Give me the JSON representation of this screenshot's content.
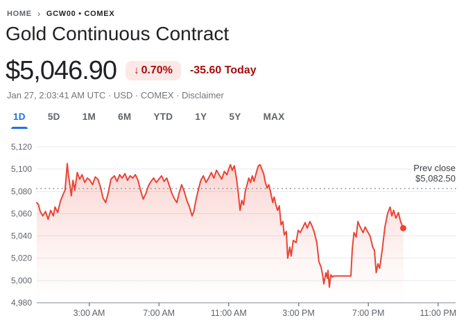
{
  "breadcrumb": {
    "home": "HOME",
    "current": "GCW00 • COMEX"
  },
  "header": {
    "title": "Gold Continuous Contract"
  },
  "quote": {
    "price": "$5,046.90",
    "change_arrow": "↓",
    "change_percent": "0.70%",
    "change_amount": "-35.60 Today",
    "meta_prefix": "Jan 27, 2:03:41 AM UTC · USD · COMEX ·",
    "disclaimer_label": "Disclaimer"
  },
  "range_tabs": [
    {
      "label": "1D",
      "active": true
    },
    {
      "label": "5D",
      "active": false
    },
    {
      "label": "1M",
      "active": false
    },
    {
      "label": "6M",
      "active": false
    },
    {
      "label": "YTD",
      "active": false
    },
    {
      "label": "1Y",
      "active": false
    },
    {
      "label": "5Y",
      "active": false
    },
    {
      "label": "MAX",
      "active": false
    }
  ],
  "colors": {
    "accent_blue": "#1a73e8",
    "negative_red": "#a50e0e",
    "badge_bg": "#fce8e6",
    "line_red": "#ea4335",
    "gridline": "#e8eaed",
    "axis": "#80868b",
    "dotted_line": "#9aa0a6"
  },
  "chart_data": {
    "type": "line",
    "title": "",
    "xlabel": "",
    "ylabel": "",
    "x_domain": [
      0,
      24
    ],
    "y_domain": [
      4980,
      5120
    ],
    "grid": true,
    "legend": false,
    "x_ticks": [
      {
        "h": 3,
        "label": "3:00 AM"
      },
      {
        "h": 7,
        "label": "7:00 AM"
      },
      {
        "h": 11,
        "label": "11:00 AM"
      },
      {
        "h": 15,
        "label": "3:00 PM"
      },
      {
        "h": 19,
        "label": "7:00 PM"
      },
      {
        "h": 23,
        "label": "11:00 PM"
      }
    ],
    "y_ticks": [
      {
        "v": 4980,
        "label": "4,980"
      },
      {
        "v": 5000,
        "label": "5,000"
      },
      {
        "v": 5020,
        "label": "5,020"
      },
      {
        "v": 5040,
        "label": "5,040"
      },
      {
        "v": 5060,
        "label": "5,060"
      },
      {
        "v": 5080,
        "label": "5,080"
      },
      {
        "v": 5100,
        "label": "5,100"
      },
      {
        "v": 5120,
        "label": "5,120"
      }
    ],
    "prev_close": {
      "label": "Prev close",
      "value_label": "$5,082.50",
      "value": 5082.5
    },
    "last_price": 5046.9,
    "points": [
      [
        0.0,
        5070
      ],
      [
        0.1,
        5068
      ],
      [
        0.2,
        5062
      ],
      [
        0.35,
        5058
      ],
      [
        0.5,
        5062
      ],
      [
        0.65,
        5055
      ],
      [
        0.8,
        5063
      ],
      [
        0.95,
        5058
      ],
      [
        1.05,
        5066
      ],
      [
        1.2,
        5061
      ],
      [
        1.35,
        5071
      ],
      [
        1.5,
        5077
      ],
      [
        1.62,
        5081
      ],
      [
        1.75,
        5105
      ],
      [
        1.82,
        5094
      ],
      [
        1.9,
        5086
      ],
      [
        1.98,
        5076
      ],
      [
        2.08,
        5090
      ],
      [
        2.18,
        5081
      ],
      [
        2.32,
        5097
      ],
      [
        2.46,
        5091
      ],
      [
        2.6,
        5095
      ],
      [
        2.75,
        5088
      ],
      [
        2.9,
        5092
      ],
      [
        3.05,
        5090
      ],
      [
        3.2,
        5086
      ],
      [
        3.35,
        5093
      ],
      [
        3.5,
        5091
      ],
      [
        3.65,
        5084
      ],
      [
        3.8,
        5074
      ],
      [
        3.95,
        5070
      ],
      [
        4.1,
        5079
      ],
      [
        4.25,
        5091
      ],
      [
        4.45,
        5094
      ],
      [
        4.6,
        5089
      ],
      [
        4.75,
        5095
      ],
      [
        4.9,
        5092
      ],
      [
        5.05,
        5096
      ],
      [
        5.2,
        5090
      ],
      [
        5.35,
        5094
      ],
      [
        5.5,
        5092
      ],
      [
        5.65,
        5095
      ],
      [
        5.8,
        5090
      ],
      [
        5.95,
        5081
      ],
      [
        6.1,
        5073
      ],
      [
        6.25,
        5078
      ],
      [
        6.4,
        5085
      ],
      [
        6.55,
        5089
      ],
      [
        6.7,
        5092
      ],
      [
        6.85,
        5088
      ],
      [
        7.0,
        5091
      ],
      [
        7.15,
        5094
      ],
      [
        7.3,
        5089
      ],
      [
        7.45,
        5092
      ],
      [
        7.6,
        5085
      ],
      [
        7.75,
        5078
      ],
      [
        7.9,
        5073
      ],
      [
        8.03,
        5070
      ],
      [
        8.15,
        5078
      ],
      [
        8.3,
        5086
      ],
      [
        8.45,
        5080
      ],
      [
        8.6,
        5072
      ],
      [
        8.75,
        5066
      ],
      [
        8.9,
        5058
      ],
      [
        9.0,
        5062
      ],
      [
        9.12,
        5072
      ],
      [
        9.25,
        5081
      ],
      [
        9.4,
        5090
      ],
      [
        9.55,
        5094
      ],
      [
        9.7,
        5088
      ],
      [
        9.85,
        5092
      ],
      [
        10.0,
        5097
      ],
      [
        10.15,
        5092
      ],
      [
        10.3,
        5099
      ],
      [
        10.45,
        5095
      ],
      [
        10.6,
        5091
      ],
      [
        10.75,
        5098
      ],
      [
        10.9,
        5095
      ],
      [
        11.0,
        5100
      ],
      [
        11.1,
        5104
      ],
      [
        11.2,
        5099
      ],
      [
        11.32,
        5103
      ],
      [
        11.45,
        5091
      ],
      [
        11.55,
        5078
      ],
      [
        11.65,
        5063
      ],
      [
        11.75,
        5072
      ],
      [
        11.85,
        5068
      ],
      [
        11.95,
        5080
      ],
      [
        12.05,
        5086
      ],
      [
        12.15,
        5092
      ],
      [
        12.25,
        5088
      ],
      [
        12.35,
        5094
      ],
      [
        12.45,
        5089
      ],
      [
        12.6,
        5098
      ],
      [
        12.7,
        5103
      ],
      [
        12.8,
        5104
      ],
      [
        12.9,
        5100
      ],
      [
        13.0,
        5096
      ],
      [
        13.1,
        5088
      ],
      [
        13.2,
        5083
      ],
      [
        13.3,
        5086
      ],
      [
        13.42,
        5078
      ],
      [
        13.52,
        5070
      ],
      [
        13.6,
        5075
      ],
      [
        13.7,
        5068
      ],
      [
        13.8,
        5063
      ],
      [
        13.9,
        5067
      ],
      [
        14.0,
        5050
      ],
      [
        14.1,
        5053
      ],
      [
        14.18,
        5041
      ],
      [
        14.3,
        5044
      ],
      [
        14.38,
        5020
      ],
      [
        14.5,
        5030
      ],
      [
        14.58,
        5022
      ],
      [
        14.7,
        5036
      ],
      [
        14.86,
        5034
      ],
      [
        14.98,
        5045
      ],
      [
        15.1,
        5043
      ],
      [
        15.26,
        5048
      ],
      [
        15.38,
        5052
      ],
      [
        15.5,
        5047
      ],
      [
        15.65,
        5053
      ],
      [
        15.77,
        5049
      ],
      [
        15.89,
        5044
      ],
      [
        16.05,
        5034
      ],
      [
        16.17,
        5017
      ],
      [
        16.29,
        5012
      ],
      [
        16.37,
        5006
      ],
      [
        16.45,
        4997
      ],
      [
        16.57,
        5007
      ],
      [
        16.65,
        5002
      ],
      [
        16.69,
        5009
      ],
      [
        16.77,
        4994
      ],
      [
        16.85,
        5005
      ],
      [
        16.95,
        5003
      ],
      [
        17.02,
        5004
      ],
      [
        18.0,
        5004
      ],
      [
        18.08,
        5028
      ],
      [
        18.18,
        5043
      ],
      [
        18.3,
        5039
      ],
      [
        18.4,
        5053
      ],
      [
        18.5,
        5049
      ],
      [
        18.6,
        5046
      ],
      [
        18.7,
        5043
      ],
      [
        18.82,
        5048
      ],
      [
        18.95,
        5044
      ],
      [
        19.1,
        5040
      ],
      [
        19.25,
        5030
      ],
      [
        19.35,
        5027
      ],
      [
        19.45,
        5007
      ],
      [
        19.55,
        5015
      ],
      [
        19.65,
        5011
      ],
      [
        19.8,
        5028
      ],
      [
        19.95,
        5048
      ],
      [
        20.1,
        5060
      ],
      [
        20.25,
        5066
      ],
      [
        20.35,
        5058
      ],
      [
        20.45,
        5063
      ],
      [
        20.58,
        5056
      ],
      [
        20.72,
        5061
      ],
      [
        20.85,
        5053
      ],
      [
        21.0,
        5047
      ]
    ]
  }
}
